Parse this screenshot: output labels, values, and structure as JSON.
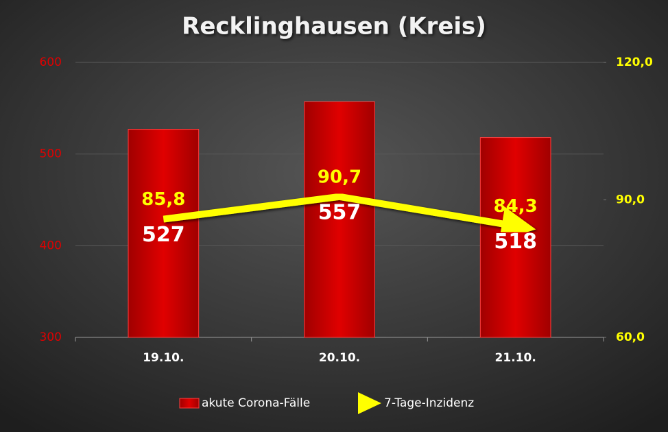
{
  "chart_data": {
    "type": "bar",
    "title": "Recklinghausen (Kreis)",
    "categories": [
      "19.10.",
      "20.10.",
      "21.10."
    ],
    "series": [
      {
        "name": "akute Corona-Fälle",
        "type": "bar",
        "color": "#d40000",
        "values": [
          527,
          557,
          518
        ]
      },
      {
        "name": "7-Tage-Inzidenz",
        "type": "line",
        "axis": "y2",
        "color": "#ffff00",
        "values": [
          85.8,
          90.7,
          84.3
        ],
        "value_labels": [
          "85,8",
          "90,7",
          "84,3"
        ]
      }
    ],
    "ylim": [
      300,
      600
    ],
    "yticks": [
      300,
      400,
      500,
      600
    ],
    "y2lim": [
      60,
      120
    ],
    "y2ticks": [
      {
        "value": 60,
        "label": "60,0"
      },
      {
        "value": 90,
        "label": "90,0"
      },
      {
        "value": 120,
        "label": "120,0"
      }
    ],
    "grid": true,
    "legend": "bottom"
  }
}
